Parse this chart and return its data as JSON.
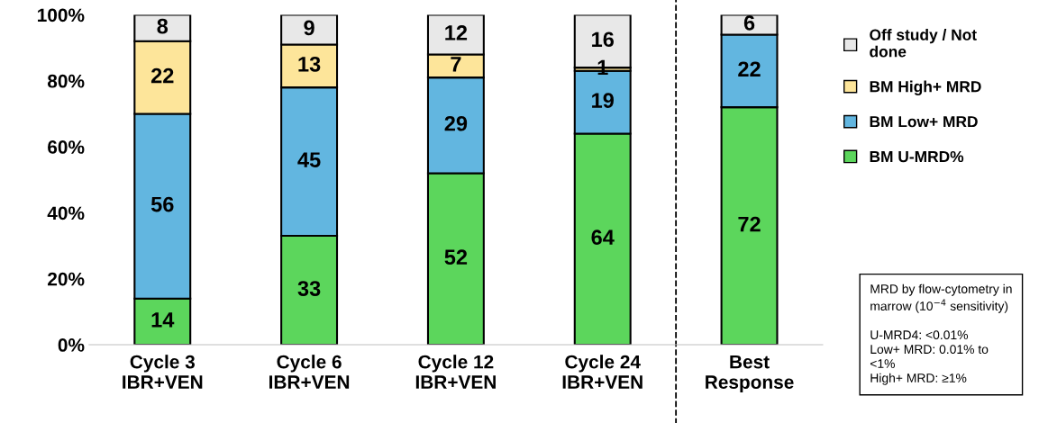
{
  "chart_data": {
    "type": "bar",
    "stacked": true,
    "categories": [
      "Cycle 3\nIBR+VEN",
      "Cycle 6\nIBR+VEN",
      "Cycle 12\nIBR+VEN",
      "Cycle 24\nIBR+VEN",
      "Best\nResponse"
    ],
    "series": [
      {
        "name": "BM U-MRD%",
        "color": "#5cd65c",
        "values": [
          14,
          33,
          52,
          64,
          72
        ]
      },
      {
        "name": "BM Low+ MRD",
        "color": "#62b6e0",
        "values": [
          56,
          45,
          29,
          19,
          22
        ]
      },
      {
        "name": "BM High+ MRD",
        "color": "#fde59a",
        "values": [
          22,
          13,
          7,
          1,
          null
        ]
      },
      {
        "name": "Off study / Not\ndone",
        "color": "#e8e8e8",
        "values": [
          8,
          9,
          12,
          16,
          6
        ]
      }
    ],
    "data_labels": true,
    "ylim": [
      0,
      100
    ],
    "yticks": [
      {
        "value": 0,
        "label": "0%"
      },
      {
        "value": 20,
        "label": "20%"
      },
      {
        "value": 40,
        "label": "40%"
      },
      {
        "value": 60,
        "label": "60%"
      },
      {
        "value": 80,
        "label": "80%"
      },
      {
        "value": 100,
        "label": "100%"
      }
    ],
    "grid": false,
    "legend": "right",
    "annotations": [
      "MRD by flow-cytometry in\nmarrow (10$^{−4}$ sensitivity)\n\nU-MRD4: <0.01%\nLow+ MRD: 0.01% to\n<1%\nHigh+ MRD: ≥1%"
    ]
  }
}
